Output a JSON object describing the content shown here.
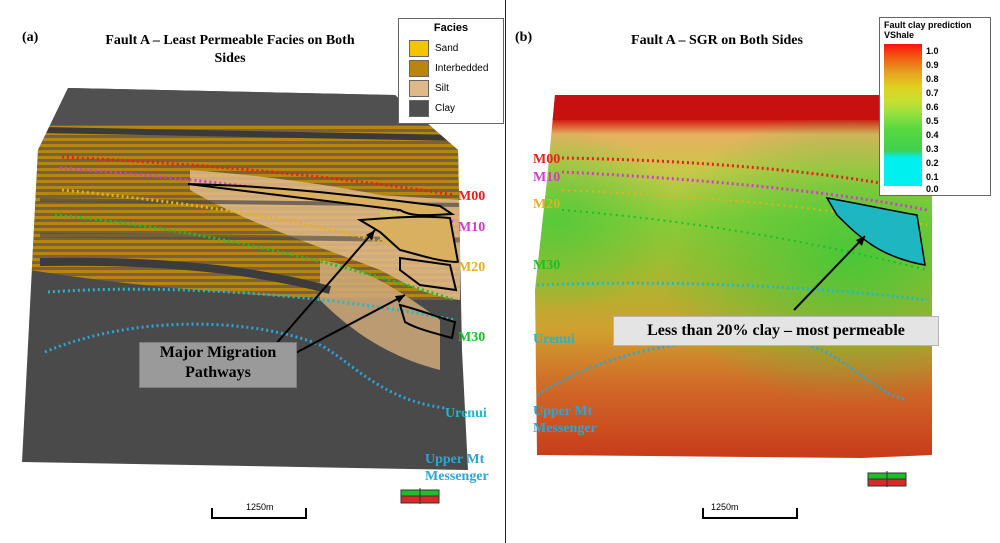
{
  "panel_a": {
    "letter": "(a)",
    "title_line1": "Fault A – Least Permeable Facies on Both",
    "title_line2": "Sides",
    "legend": {
      "title": "Facies",
      "items": [
        {
          "label": "Sand",
          "color": "#f5c400"
        },
        {
          "label": "Interbedded",
          "color": "#b8860b"
        },
        {
          "label": "Silt",
          "color": "#dfb98a"
        },
        {
          "label": "Clay",
          "color": "#4f4f4f"
        }
      ]
    },
    "horizons": [
      "M00",
      "M10",
      "M20",
      "M30",
      "Urenui",
      "Upper Mt",
      "Messenger"
    ],
    "callout_line1": "Major Migration",
    "callout_line2": "Pathways",
    "scale": "1250m"
  },
  "panel_b": {
    "letter": "(b)",
    "title": "Fault A – SGR on Both Sides",
    "colorbar": {
      "title_line1": "Fault clay prediction",
      "title_line2": "VShale",
      "ticks": [
        "1.0",
        "0.9",
        "0.8",
        "0.7",
        "0.6",
        "0.5",
        "0.4",
        "0.3",
        "0.2",
        "0.1",
        "0.0"
      ]
    },
    "horizons": [
      "M00",
      "M10",
      "M20",
      "M30",
      "Urenui",
      "Upper Mt",
      "Messenger"
    ],
    "callout": "Less than 20% clay – most permeable",
    "scale": "1250m"
  },
  "colors": {
    "M00": "#e8201a",
    "M10": "#d63bcd",
    "M20": "#e6b01e",
    "M30": "#1cbf2a",
    "Urenui": "#22b8c6",
    "UpperMt": "#2aa6d8"
  }
}
